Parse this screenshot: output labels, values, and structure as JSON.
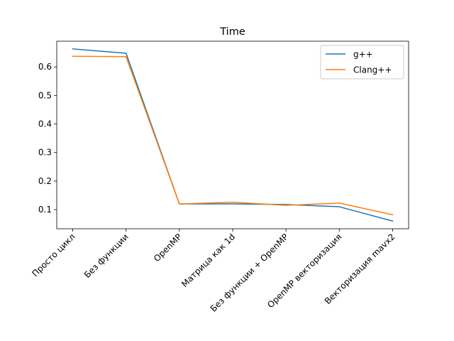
{
  "chart_data": {
    "type": "line",
    "title": "Time",
    "xlabel": "",
    "ylabel": "",
    "categories": [
      "Просто цикл",
      "Без функции",
      "OpenMP",
      "Матрица как 1d",
      "Без функции + OpenMP",
      "OpenMP векторизация",
      "Векторизация mavx2"
    ],
    "series": [
      {
        "name": "g++",
        "color": "#1f77b4",
        "values": [
          0.663,
          0.648,
          0.12,
          0.12,
          0.118,
          0.11,
          0.06
        ]
      },
      {
        "name": "Clang++",
        "color": "#ff7f0e",
        "values": [
          0.637,
          0.636,
          0.12,
          0.126,
          0.115,
          0.123,
          0.082
        ]
      }
    ],
    "ylim": [
      0.033,
      0.69
    ],
    "yticks": [
      "0.1",
      "0.2",
      "0.3",
      "0.4",
      "0.5",
      "0.6"
    ],
    "grid": false,
    "legend": "top-right"
  }
}
